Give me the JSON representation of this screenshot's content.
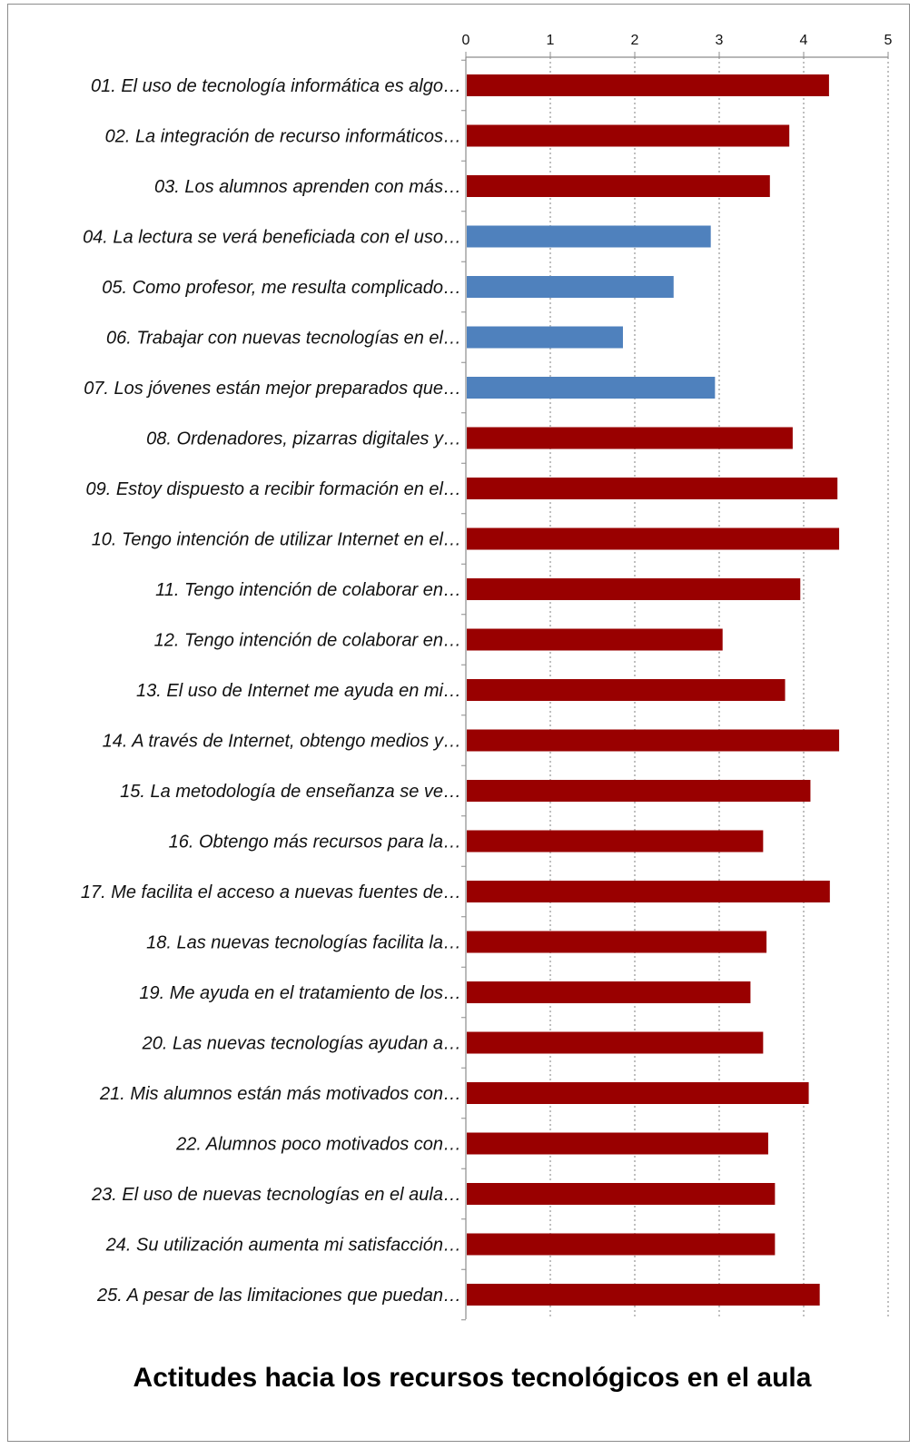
{
  "chart_data": {
    "type": "bar",
    "orientation": "horizontal",
    "title": "Actitudes hacia los recursos  tecnológicos en el aula",
    "xlabel": "",
    "ylabel": "",
    "xlim": [
      0,
      5
    ],
    "ticks": [
      "0",
      "1",
      "2",
      "3",
      "4",
      "5"
    ],
    "grid": true,
    "legend": "none",
    "colors": {
      "default": "#990000",
      "highlight": "#4f81bd",
      "grid": "#7f7f7f",
      "axis": "#8c8c8c"
    },
    "categories": [
      "01. El uso de tecnología informática  es algo…",
      "02. La integración  de recurso  informáticos…",
      "03. Los alumnos aprenden con más…",
      "04. La lectura  se verá beneficiada con el uso…",
      "05. Como profesor,  me resulta  complicado…",
      "06. Trabajar  con nuevas tecnologías  en el…",
      "07. Los jóvenes están  mejor  preparados que…",
      "08. Ordenadores,  pizarras  digitales y…",
      "09. Estoy  dispuesto  a recibir  formación  en el…",
      "10. Tengo intención  de utilizar  Internet  en el…",
      "11. Tengo intención  de colaborar en…",
      "12. Tengo intención  de colaborar en…",
      "13. El uso de  Internet  me ayuda en mi…",
      "14. A través de Internet,  obtengo medios y…",
      "15. La metodología  de enseñanza se ve…",
      "16. Obtengo más recursos  para la…",
      "17. Me facilita  el acceso  a nuevas fuentes  de…",
      "18. Las nuevas tecnologías  facilita  la…",
      "19. Me ayuda en el tratamiento  de los…",
      "20. Las nuevas tecnologías  ayudan a…",
      "21. Mis alumnos están  más motivados con…",
      "22. Alumnos poco motivados con…",
      "23. El uso de nuevas tecnologías  en el aula…",
      "24. Su utilización  aumenta mi satisfacción…",
      "25. A pesar de las limitaciones  que puedan…"
    ],
    "values": [
      4.3,
      3.83,
      3.6,
      2.9,
      2.46,
      1.86,
      2.95,
      3.87,
      4.4,
      4.42,
      3.96,
      3.04,
      3.78,
      4.42,
      4.08,
      3.52,
      4.31,
      3.56,
      3.37,
      3.52,
      4.06,
      3.58,
      3.66,
      3.66,
      4.19
    ],
    "highlighted": [
      false,
      false,
      false,
      true,
      true,
      true,
      true,
      false,
      false,
      false,
      false,
      false,
      false,
      false,
      false,
      false,
      false,
      false,
      false,
      false,
      false,
      false,
      false,
      false,
      false
    ]
  }
}
